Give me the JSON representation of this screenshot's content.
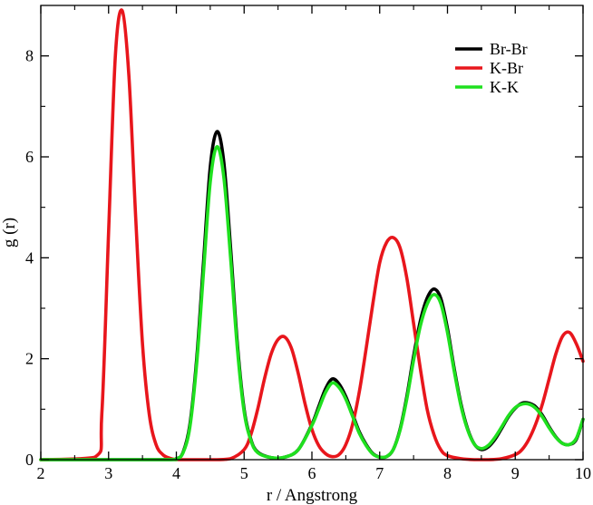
{
  "chart_data": {
    "type": "line",
    "title": "",
    "xlabel": "r  /  Angstrong",
    "ylabel": "g (r)",
    "xlim": [
      2,
      10
    ],
    "ylim": [
      0,
      9
    ],
    "xticks": [
      2,
      3,
      4,
      5,
      6,
      7,
      8,
      9,
      10
    ],
    "yticks": [
      0,
      2,
      4,
      6,
      8
    ],
    "legend_position": "top-right",
    "grid": false,
    "series": [
      {
        "name": "Br-Br",
        "color": "#000000",
        "x": [
          2.0,
          3.8,
          4.0,
          4.1,
          4.2,
          4.3,
          4.4,
          4.5,
          4.6,
          4.7,
          4.8,
          4.9,
          5.0,
          5.1,
          5.2,
          5.4,
          5.6,
          5.8,
          6.0,
          6.1,
          6.2,
          6.3,
          6.4,
          6.5,
          6.6,
          6.7,
          6.8,
          6.9,
          7.0,
          7.1,
          7.2,
          7.3,
          7.4,
          7.5,
          7.6,
          7.7,
          7.8,
          7.9,
          8.0,
          8.1,
          8.2,
          8.3,
          8.4,
          8.5,
          8.6,
          8.7,
          8.8,
          8.9,
          9.0,
          9.1,
          9.2,
          9.3,
          9.4,
          9.5,
          9.6,
          9.7,
          9.8,
          9.9,
          10.0
        ],
        "y": [
          0.0,
          0.0,
          0.02,
          0.15,
          0.7,
          2.0,
          3.9,
          5.8,
          6.5,
          5.9,
          4.2,
          2.3,
          1.0,
          0.4,
          0.15,
          0.04,
          0.05,
          0.2,
          0.7,
          1.05,
          1.4,
          1.6,
          1.5,
          1.25,
          0.9,
          0.55,
          0.3,
          0.12,
          0.05,
          0.06,
          0.2,
          0.6,
          1.25,
          2.05,
          2.75,
          3.2,
          3.38,
          3.2,
          2.6,
          1.8,
          1.1,
          0.6,
          0.3,
          0.2,
          0.25,
          0.4,
          0.62,
          0.85,
          1.02,
          1.12,
          1.12,
          1.05,
          0.88,
          0.65,
          0.45,
          0.32,
          0.3,
          0.4,
          0.8
        ]
      },
      {
        "name": "K-Br",
        "color": "#e8161c",
        "x": [
          2.0,
          2.8,
          2.9,
          3.0,
          3.1,
          3.2,
          3.3,
          3.4,
          3.5,
          3.6,
          3.7,
          3.8,
          3.9,
          4.0,
          4.2,
          4.4,
          4.6,
          4.8,
          5.0,
          5.1,
          5.2,
          5.3,
          5.4,
          5.5,
          5.6,
          5.7,
          5.8,
          5.9,
          6.0,
          6.1,
          6.2,
          6.3,
          6.4,
          6.5,
          6.6,
          6.7,
          6.8,
          6.9,
          7.0,
          7.1,
          7.2,
          7.3,
          7.4,
          7.5,
          7.6,
          7.7,
          7.8,
          7.9,
          8.0,
          8.2,
          8.4,
          8.6,
          8.8,
          9.0,
          9.1,
          9.2,
          9.3,
          9.4,
          9.5,
          9.6,
          9.7,
          9.8,
          9.9,
          10.0
        ],
        "y": [
          0.0,
          0.05,
          0.9,
          4.5,
          8.0,
          8.9,
          7.6,
          4.8,
          2.3,
          0.9,
          0.3,
          0.1,
          0.03,
          0.0,
          0.0,
          0.0,
          0.0,
          0.02,
          0.2,
          0.5,
          1.0,
          1.6,
          2.1,
          2.38,
          2.43,
          2.2,
          1.7,
          1.1,
          0.6,
          0.28,
          0.12,
          0.06,
          0.1,
          0.3,
          0.7,
          1.35,
          2.2,
          3.1,
          3.9,
          4.3,
          4.4,
          4.2,
          3.6,
          2.7,
          1.8,
          1.0,
          0.5,
          0.2,
          0.08,
          0.02,
          0.0,
          0.0,
          0.02,
          0.1,
          0.2,
          0.4,
          0.7,
          1.1,
          1.6,
          2.1,
          2.45,
          2.52,
          2.3,
          1.95
        ]
      },
      {
        "name": "K-K",
        "color": "#1fe01f",
        "x": [
          2.0,
          3.8,
          4.0,
          4.1,
          4.2,
          4.3,
          4.4,
          4.5,
          4.6,
          4.7,
          4.8,
          4.9,
          5.0,
          5.1,
          5.2,
          5.4,
          5.6,
          5.8,
          6.0,
          6.1,
          6.2,
          6.3,
          6.4,
          6.5,
          6.6,
          6.7,
          6.8,
          6.9,
          7.0,
          7.1,
          7.2,
          7.3,
          7.4,
          7.5,
          7.6,
          7.7,
          7.8,
          7.9,
          8.0,
          8.1,
          8.2,
          8.3,
          8.4,
          8.5,
          8.6,
          8.7,
          8.8,
          8.9,
          9.0,
          9.1,
          9.2,
          9.3,
          9.4,
          9.5,
          9.6,
          9.7,
          9.8,
          9.9,
          10.0
        ],
        "y": [
          0.0,
          0.0,
          0.02,
          0.14,
          0.65,
          1.9,
          3.7,
          5.5,
          6.2,
          5.6,
          4.0,
          2.2,
          0.95,
          0.38,
          0.14,
          0.04,
          0.05,
          0.2,
          0.68,
          1.0,
          1.33,
          1.52,
          1.43,
          1.2,
          0.86,
          0.52,
          0.28,
          0.11,
          0.05,
          0.06,
          0.2,
          0.58,
          1.2,
          1.97,
          2.65,
          3.08,
          3.27,
          3.1,
          2.52,
          1.75,
          1.06,
          0.58,
          0.3,
          0.22,
          0.28,
          0.44,
          0.65,
          0.87,
          1.03,
          1.1,
          1.1,
          1.02,
          0.85,
          0.63,
          0.44,
          0.32,
          0.3,
          0.42,
          0.8
        ]
      }
    ]
  }
}
